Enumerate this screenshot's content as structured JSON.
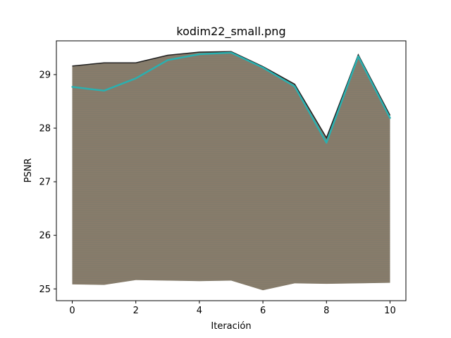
{
  "chart_data": {
    "type": "line",
    "title": "kodim22_small.png",
    "xlabel": "Iteración",
    "ylabel": "PSNR",
    "xlim": [
      -0.5,
      10.5
    ],
    "ylim": [
      24.78,
      29.63
    ],
    "xticks": [
      0,
      2,
      4,
      6,
      8,
      10
    ],
    "xtick_labels": [
      "0",
      "2",
      "4",
      "6",
      "8",
      "10"
    ],
    "yticks": [
      25,
      26,
      27,
      28,
      29
    ],
    "ytick_labels": [
      "25",
      "26",
      "27",
      "28",
      "29"
    ],
    "grid": false,
    "x": [
      0,
      1,
      2,
      3,
      4,
      5,
      6,
      7,
      8,
      9,
      10
    ],
    "band": {
      "upper": [
        29.16,
        29.22,
        29.22,
        29.36,
        29.42,
        29.43,
        29.15,
        28.82,
        27.82,
        29.37,
        28.24
      ],
      "lower": [
        25.08,
        25.07,
        25.16,
        25.15,
        25.14,
        25.15,
        24.97,
        25.1,
        25.09,
        25.1,
        25.11
      ]
    },
    "series": [
      {
        "values": [
          28.77,
          28.7,
          28.93,
          29.27,
          29.38,
          29.41,
          29.13,
          28.78,
          27.73,
          29.34,
          28.19
        ],
        "color": "#2ab0b0"
      }
    ],
    "colors": {
      "band_fill": "#857b69",
      "band_edge": "#1f1f1f",
      "line": "#2ab0b0"
    }
  }
}
